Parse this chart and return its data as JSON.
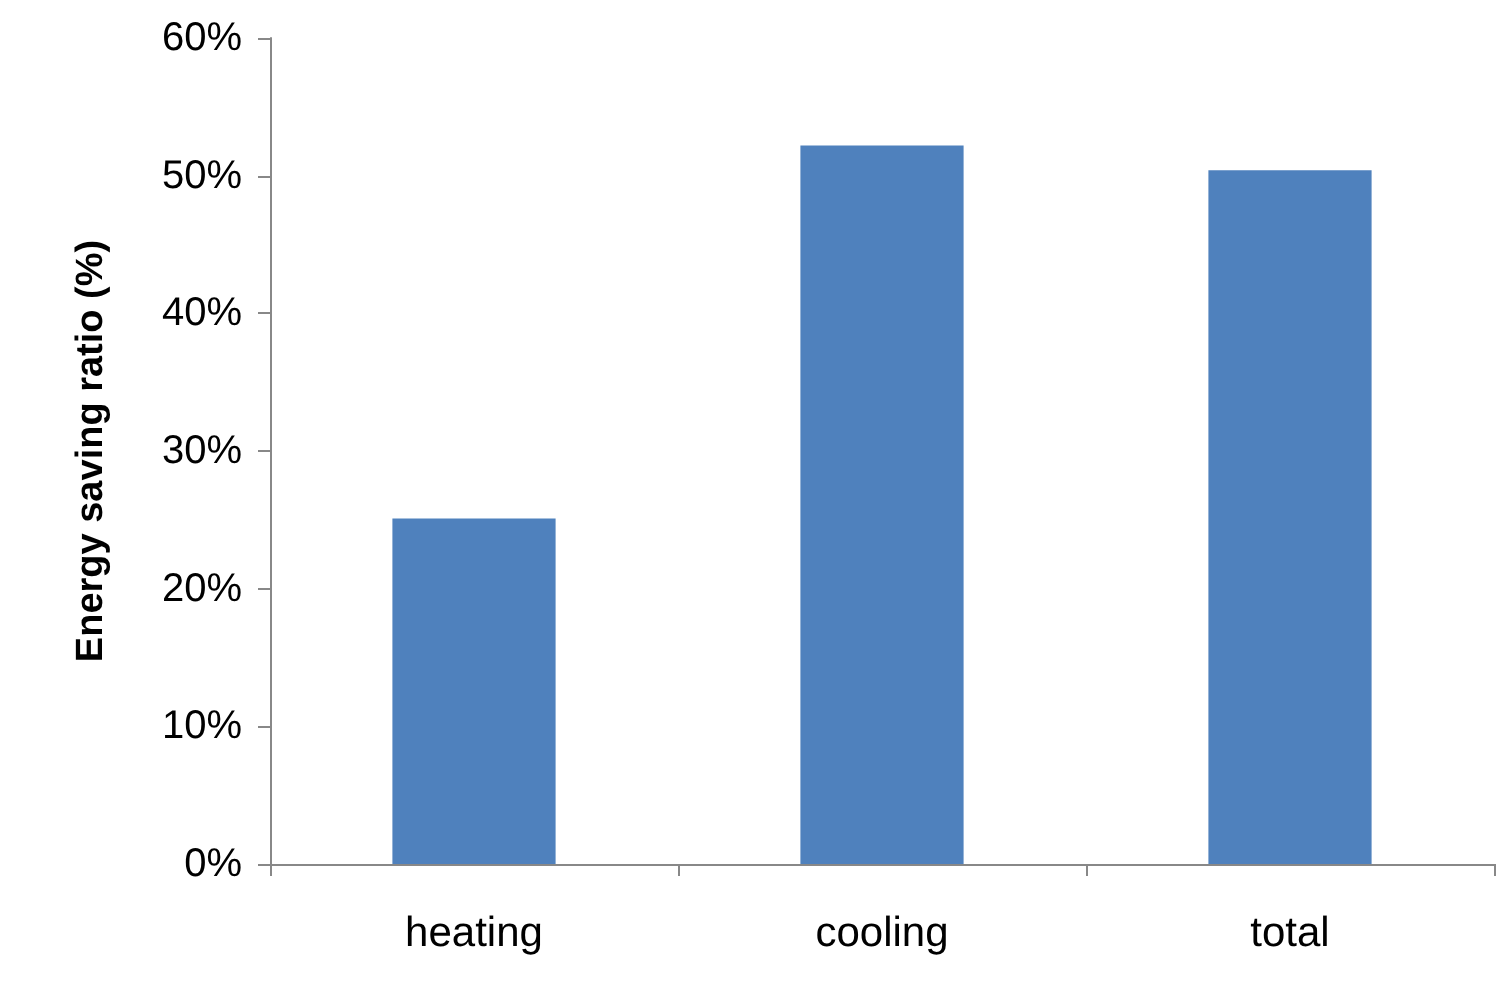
{
  "chart_data": {
    "type": "bar",
    "ylabel": "Energy saving ratio (%)",
    "categories": [
      "heating",
      "cooling",
      "total"
    ],
    "values": [
      25.1,
      52.2,
      50.4
    ],
    "color": "#4f81bd",
    "ylim": [
      0,
      60
    ],
    "yticks": [
      {
        "value": 0,
        "label": "0%"
      },
      {
        "value": 10,
        "label": "10%"
      },
      {
        "value": 20,
        "label": "20%"
      },
      {
        "value": 30,
        "label": "30%"
      },
      {
        "value": 40,
        "label": "40%"
      },
      {
        "value": 50,
        "label": "50%"
      },
      {
        "value": 60,
        "label": "60%"
      }
    ],
    "grid": false
  }
}
